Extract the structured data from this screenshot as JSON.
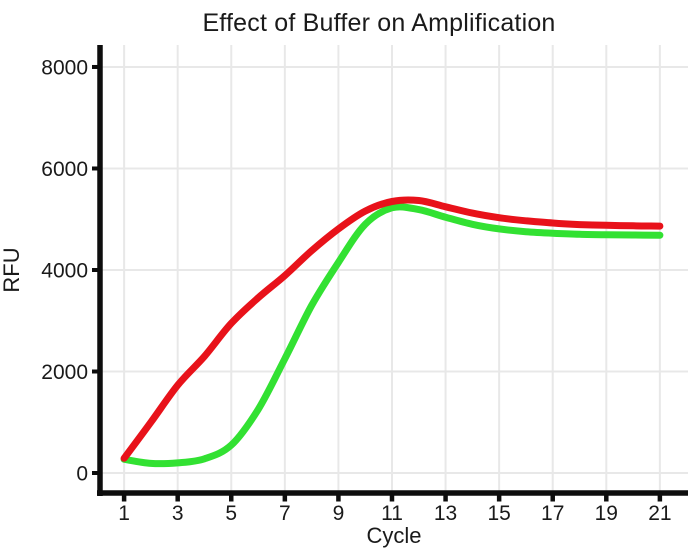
{
  "page": {
    "background": "#ffffff"
  },
  "chart_data": {
    "type": "line",
    "title": "Effect of Buffer on Amplification",
    "xlabel": "Cycle",
    "ylabel": "RFU",
    "x": [
      1,
      2,
      3,
      4,
      5,
      6,
      7,
      8,
      9,
      10,
      11,
      12,
      13,
      14,
      15,
      16,
      17,
      18,
      19,
      20,
      21
    ],
    "series": [
      {
        "name": "green-curve",
        "color": "#32e132",
        "values": [
          270,
          190,
          200,
          280,
          550,
          1250,
          2250,
          3300,
          4150,
          4900,
          5225,
          5190,
          5040,
          4900,
          4810,
          4755,
          4725,
          4705,
          4695,
          4690,
          4685
        ]
      },
      {
        "name": "red-curve",
        "color": "#e8121a",
        "values": [
          290,
          1000,
          1730,
          2300,
          2950,
          3450,
          3890,
          4380,
          4810,
          5160,
          5350,
          5370,
          5245,
          5120,
          5030,
          4970,
          4925,
          4895,
          4880,
          4870,
          4865
        ]
      }
    ],
    "x_ticks": [
      1,
      3,
      5,
      7,
      9,
      11,
      13,
      15,
      17,
      19,
      21
    ],
    "y_ticks": [
      0,
      2000,
      4000,
      6000,
      8000
    ],
    "xlim": [
      0.1,
      22.05
    ],
    "ylim": [
      -394,
      8433
    ],
    "grid": true,
    "legend": "none",
    "grid_color": "#e8e8e8",
    "axis_color": "#0d0d0d",
    "text_color": "#1a1a1a"
  }
}
